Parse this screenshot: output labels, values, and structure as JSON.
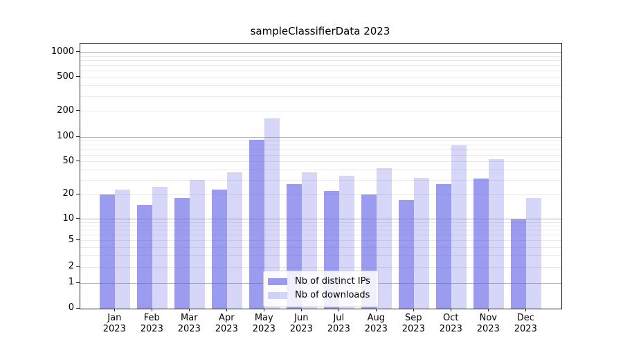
{
  "chart_data": {
    "type": "bar",
    "title": "sampleClassifierData 2023",
    "year_label": "2023",
    "categories": [
      "Jan",
      "Feb",
      "Mar",
      "Apr",
      "May",
      "Jun",
      "Jul",
      "Aug",
      "Sep",
      "Oct",
      "Nov",
      "Dec"
    ],
    "series": [
      {
        "name": "Nb of distinct IPs",
        "color": "rgba(93,93,230,0.62)",
        "values": [
          20,
          15,
          18,
          23,
          92,
          27,
          22,
          20,
          17,
          27,
          31,
          10
        ]
      },
      {
        "name": "Nb of downloads",
        "color": "rgba(93,93,230,0.25)",
        "values": [
          23,
          25,
          30,
          37,
          165,
          37,
          34,
          42,
          32,
          80,
          54,
          18
        ]
      }
    ],
    "yscale": "symlog",
    "ylim": [
      0,
      1000
    ],
    "yticks": [
      0,
      1,
      2,
      5,
      10,
      20,
      50,
      100,
      200,
      500,
      1000
    ],
    "minor_gridlines": [
      2,
      3,
      4,
      5,
      6,
      7,
      8,
      9,
      20,
      30,
      40,
      50,
      60,
      70,
      80,
      90,
      200,
      300,
      400,
      500,
      600,
      700,
      800,
      900
    ],
    "major_gridlines": [
      1,
      10,
      100,
      1000
    ],
    "grid": true,
    "legend_position": "lower center",
    "colors": {
      "bar_dark": "rgba(93,93,230,0.62)",
      "bar_light": "rgba(93,93,230,0.25)",
      "grid_major": "#b3b3b3",
      "grid_minor": "#e9e9e9",
      "axis": "#1f1f1f",
      "background": "#ffffff"
    }
  }
}
